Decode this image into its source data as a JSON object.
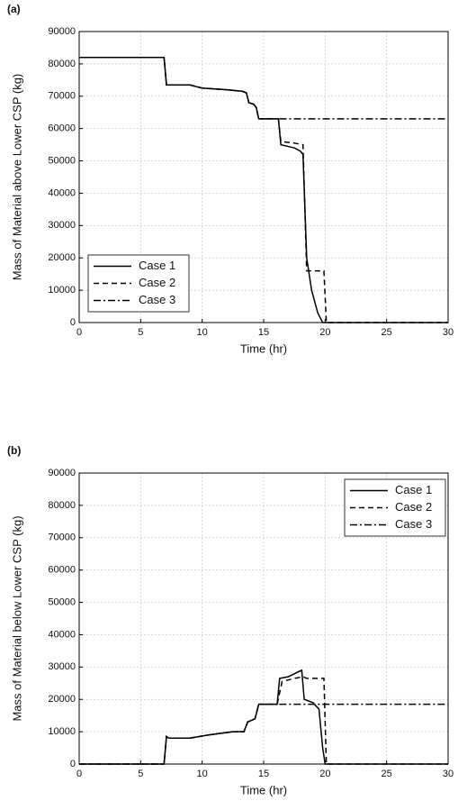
{
  "chart_data": [
    {
      "type": "line",
      "panel_label": "(a)",
      "xlabel": "Time (hr)",
      "ylabel": "Mass of Material above Lower CSP (kg)",
      "xlim": [
        0,
        30
      ],
      "ylim": [
        0,
        90000
      ],
      "xticks": [
        0,
        5,
        10,
        15,
        20,
        25,
        30
      ],
      "yticks": [
        0,
        10000,
        20000,
        30000,
        40000,
        50000,
        60000,
        70000,
        80000,
        90000
      ],
      "grid": true,
      "legend": "lower left",
      "series": [
        {
          "name": "Case 1",
          "color": "#000000",
          "style": "solid",
          "x": [
            0,
            6.9,
            7.1,
            9,
            10,
            12,
            13.3,
            13.6,
            13.8,
            14.2,
            14.4,
            14.6,
            16.2,
            16.4,
            17.5,
            18,
            18.2,
            18.5,
            18.9,
            19.4,
            19.8,
            30
          ],
          "values": [
            82000,
            82000,
            73500,
            73500,
            72500,
            72000,
            71500,
            71000,
            68000,
            67500,
            66500,
            63000,
            63000,
            55000,
            54000,
            53000,
            52000,
            20000,
            10000,
            3000,
            0,
            0
          ]
        },
        {
          "name": "Case 2",
          "color": "#000000",
          "style": "dashed",
          "x": [
            0,
            6.9,
            7.1,
            9,
            10,
            12,
            13.3,
            13.6,
            13.8,
            14.2,
            14.4,
            14.6,
            16.2,
            16.4,
            17.5,
            18.2,
            18.5,
            19.9,
            20.1,
            30
          ],
          "values": [
            82000,
            82000,
            73500,
            73500,
            72500,
            72000,
            71500,
            71000,
            68000,
            67500,
            66500,
            63000,
            63000,
            56000,
            55500,
            55000,
            16000,
            16000,
            0,
            0
          ]
        },
        {
          "name": "Case 3",
          "color": "#000000",
          "style": "dashdot",
          "x": [
            0,
            6.9,
            7.1,
            9,
            10,
            12,
            13.3,
            13.6,
            13.8,
            14.2,
            14.4,
            14.6,
            16.2,
            30
          ],
          "values": [
            82000,
            82000,
            73500,
            73500,
            72500,
            72000,
            71500,
            71000,
            68000,
            67500,
            66500,
            63000,
            63000,
            63000
          ]
        }
      ]
    },
    {
      "type": "line",
      "panel_label": "(b)",
      "xlabel": "Time (hr)",
      "ylabel": "Mass of Material below Lower CSP (kg)",
      "xlim": [
        0,
        30
      ],
      "ylim": [
        0,
        90000
      ],
      "xticks": [
        0,
        5,
        10,
        15,
        20,
        25,
        30
      ],
      "yticks": [
        0,
        10000,
        20000,
        30000,
        40000,
        50000,
        60000,
        70000,
        80000,
        90000
      ],
      "grid": true,
      "legend": "upper right",
      "series": [
        {
          "name": "Case 1",
          "color": "#000000",
          "style": "solid",
          "x": [
            0,
            6.9,
            7.1,
            7.3,
            9,
            10.5,
            12.5,
            13.4,
            13.7,
            14.3,
            14.6,
            16.1,
            16.3,
            17,
            17.8,
            18.1,
            18.3,
            19,
            19.5,
            19.8,
            20,
            30
          ],
          "values": [
            0,
            0,
            8500,
            8000,
            8000,
            9000,
            10000,
            10000,
            13000,
            14000,
            18500,
            18500,
            26500,
            27000,
            28500,
            29000,
            20000,
            19000,
            17000,
            5000,
            0,
            0
          ]
        },
        {
          "name": "Case 2",
          "color": "#000000",
          "style": "dashed",
          "x": [
            0,
            6.9,
            7.1,
            7.3,
            9,
            10.5,
            12.5,
            13.4,
            13.7,
            14.3,
            14.6,
            16.1,
            16.5,
            17.5,
            18.2,
            18.5,
            19.9,
            20.1,
            30
          ],
          "values": [
            0,
            0,
            8500,
            8000,
            8000,
            9000,
            10000,
            10000,
            13000,
            14000,
            18500,
            18500,
            25500,
            26500,
            27000,
            26500,
            26500,
            0,
            0
          ]
        },
        {
          "name": "Case 3",
          "color": "#000000",
          "style": "dashdot",
          "x": [
            0,
            6.9,
            7.1,
            7.3,
            9,
            10.5,
            12.5,
            13.4,
            13.7,
            14.3,
            14.6,
            16.1,
            30
          ],
          "values": [
            0,
            0,
            8500,
            8000,
            8000,
            9000,
            10000,
            10000,
            13000,
            14000,
            18500,
            18500,
            18500
          ]
        }
      ]
    }
  ]
}
